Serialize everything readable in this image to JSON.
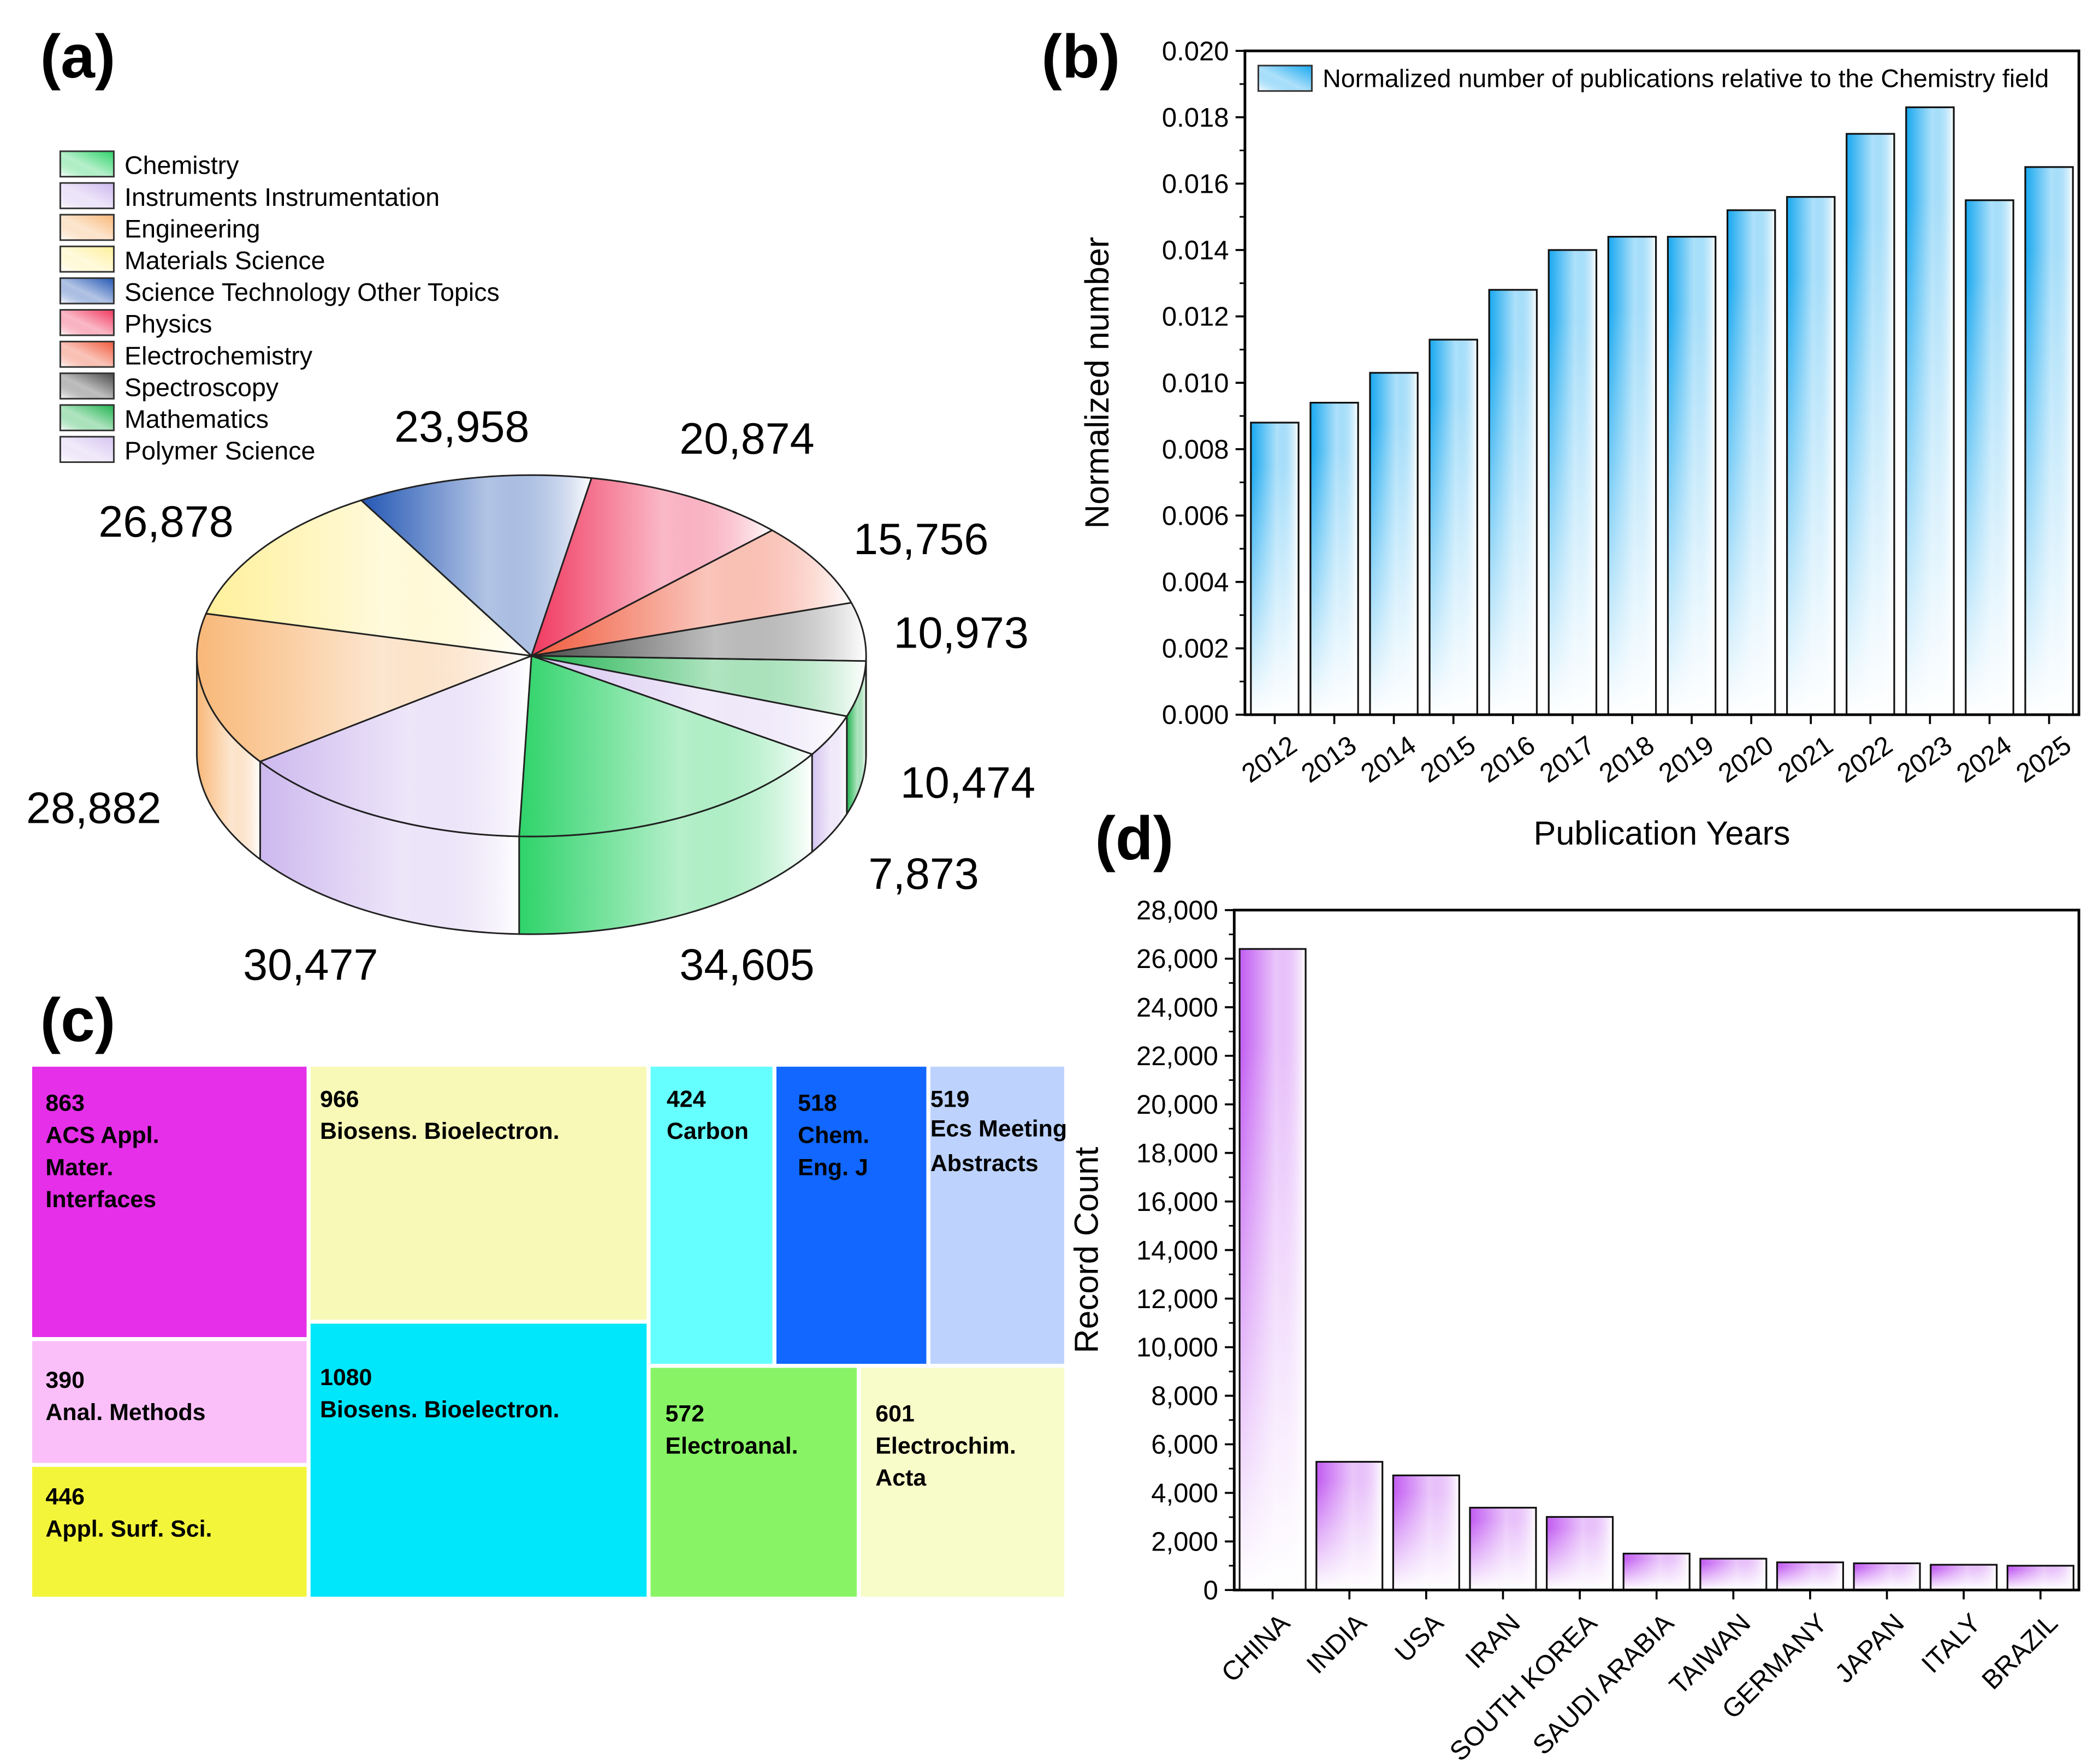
{
  "panels": {
    "a": "(a)",
    "b": "(b)",
    "c": "(c)",
    "d": "(d)"
  },
  "chart_data": [
    {
      "type": "pie",
      "title": "",
      "categories": [
        "Chemistry",
        "Instruments Instrumentation",
        "Engineering",
        "Materials Science",
        "Science Technology Other Topics",
        "Physics",
        "Electrochemistry",
        "Spectroscopy",
        "Mathematics",
        "Polymer Science"
      ],
      "values": [
        34605,
        30477,
        28882,
        26878,
        23958,
        20874,
        15756,
        10973,
        10474,
        7873
      ],
      "value_labels": [
        "34,605",
        "30,477",
        "28,882",
        "26,878",
        "23,958",
        "20,874",
        "15,756",
        "10,973",
        "10,474",
        "7,873"
      ],
      "colors": [
        "#2fd36a",
        "#cdb8ee",
        "#f8b878",
        "#fff09a",
        "#2457b4",
        "#f0385f",
        "#f05a3c",
        "#4a4a4a",
        "#1fb34f",
        "#d5c4f0"
      ],
      "legend_position": "top-left"
    },
    {
      "type": "bar",
      "title": "",
      "legend": "Normalized number of publications relative to the Chemistry field",
      "categories": [
        "2012",
        "2013",
        "2014",
        "2015",
        "2016",
        "2017",
        "2018",
        "2019",
        "2020",
        "2021",
        "2022",
        "2023",
        "2024",
        "2025"
      ],
      "values": [
        0.0088,
        0.0094,
        0.0103,
        0.0113,
        0.0128,
        0.014,
        0.0144,
        0.0144,
        0.0152,
        0.0156,
        0.0175,
        0.0183,
        0.0155,
        0.0165
      ],
      "xlabel": "Publication Years",
      "ylabel": "Normalized number",
      "ylim": [
        0,
        0.02
      ],
      "yticks": [
        "0.000",
        "0.002",
        "0.004",
        "0.006",
        "0.008",
        "0.010",
        "0.012",
        "0.014",
        "0.016",
        "0.018",
        "0.020"
      ],
      "color": "#18a8f0",
      "legend_position": "top"
    },
    {
      "type": "treemap",
      "items": [
        {
          "value": "863",
          "label": "ACS Appl. Mater. Interfaces",
          "lines": [
            "ACS Appl.",
            "Mater.",
            "Interfaces"
          ],
          "color": "#e52fe8"
        },
        {
          "value": "390",
          "label": "Anal. Methods",
          "lines": [
            "Anal. Methods"
          ],
          "color": "#fabff9"
        },
        {
          "value": "446",
          "label": "Appl. Surf. Sci.",
          "lines": [
            "Appl. Surf. Sci."
          ],
          "color": "#f3f53b"
        },
        {
          "value": "966",
          "label": "Biosens. Bioelectron.",
          "lines": [
            "Biosens. Bioelectron."
          ],
          "color": "#f8f9b7"
        },
        {
          "value": "1080",
          "label": "Biosens. Bioelectron.",
          "lines": [
            "Biosens. Bioelectron."
          ],
          "color": "#00e6fa"
        },
        {
          "value": "424",
          "label": "Carbon",
          "lines": [
            "Carbon"
          ],
          "color": "#66ffff"
        },
        {
          "value": "518",
          "label": "Chem. Eng. J",
          "lines": [
            "Chem.",
            "Eng. J"
          ],
          "color": "#1167ff"
        },
        {
          "value": "519",
          "label": "Ecs Meeting Abstracts",
          "lines": [
            "Ecs Meeting",
            "Abstracts"
          ],
          "color": "#bdd3fe"
        },
        {
          "value": "572",
          "label": "Electroanal.",
          "lines": [
            "Electroanal."
          ],
          "color": "#88f465"
        },
        {
          "value": "601",
          "label": "Electrochim. Acta",
          "lines": [
            "Electrochim.",
            "Acta"
          ],
          "color": "#f8fcc9"
        }
      ]
    },
    {
      "type": "bar",
      "title": "",
      "categories": [
        "CHINA",
        "INDIA",
        "USA",
        "IRAN",
        "SOUTH KOREA",
        "SAUDI ARABIA",
        "TAIWAN",
        "GERMANY",
        "JAPAN",
        "ITALY",
        "BRAZIL"
      ],
      "values": [
        26400,
        5280,
        4720,
        3390,
        3010,
        1500,
        1290,
        1140,
        1100,
        1040,
        1000
      ],
      "xlabel": "",
      "ylabel": "Record Count",
      "ylim": [
        0,
        28000
      ],
      "yticks": [
        "0",
        "2,000",
        "4,000",
        "6,000",
        "8,000",
        "10,000",
        "12,000",
        "14,000",
        "16,000",
        "18,000",
        "20,000",
        "22,000",
        "24,000",
        "26,000",
        "28,000"
      ],
      "color": "#c25cf2"
    }
  ]
}
